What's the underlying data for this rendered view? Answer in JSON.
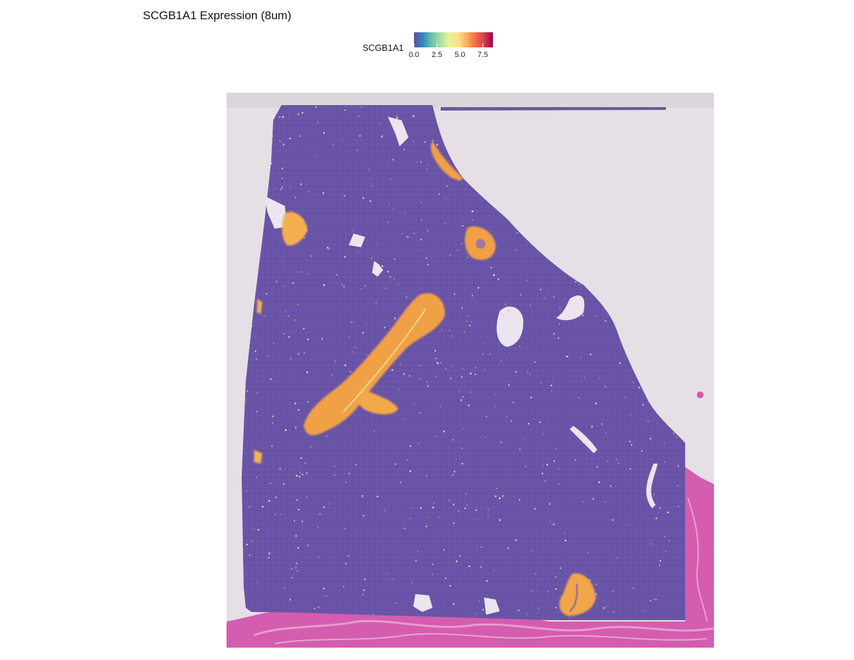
{
  "chart_data": {
    "type": "heatmap",
    "title": "SCGB1A1 Expression (8um)",
    "legend": {
      "title": "SCGB1A1",
      "placement": "top-center",
      "scale": "Spectral (reversed)",
      "min": 0,
      "max": 8.6,
      "ticks": [
        0.0,
        2.5,
        5.0,
        7.5
      ],
      "tick_labels": [
        "0.0",
        "2.5",
        "5.0",
        "7.5"
      ],
      "colors": [
        "#5e4fa2",
        "#3288bd",
        "#66c2a5",
        "#abdda4",
        "#e6f598",
        "#fee08b",
        "#fdae61",
        "#f46d43",
        "#d53e4f",
        "#9e0142"
      ]
    },
    "background": "H&E tissue image",
    "baseline_color": "#6a55a8",
    "high_expression_regions": [
      {
        "name": "central-airway",
        "level": 6.5
      },
      {
        "name": "upper-left-airway",
        "level": 6.0
      },
      {
        "name": "upper-right-edge",
        "level": 6.0
      },
      {
        "name": "right-ring-airway",
        "level": 6.2
      },
      {
        "name": "bottom-right-airway",
        "level": 6.3
      }
    ]
  }
}
